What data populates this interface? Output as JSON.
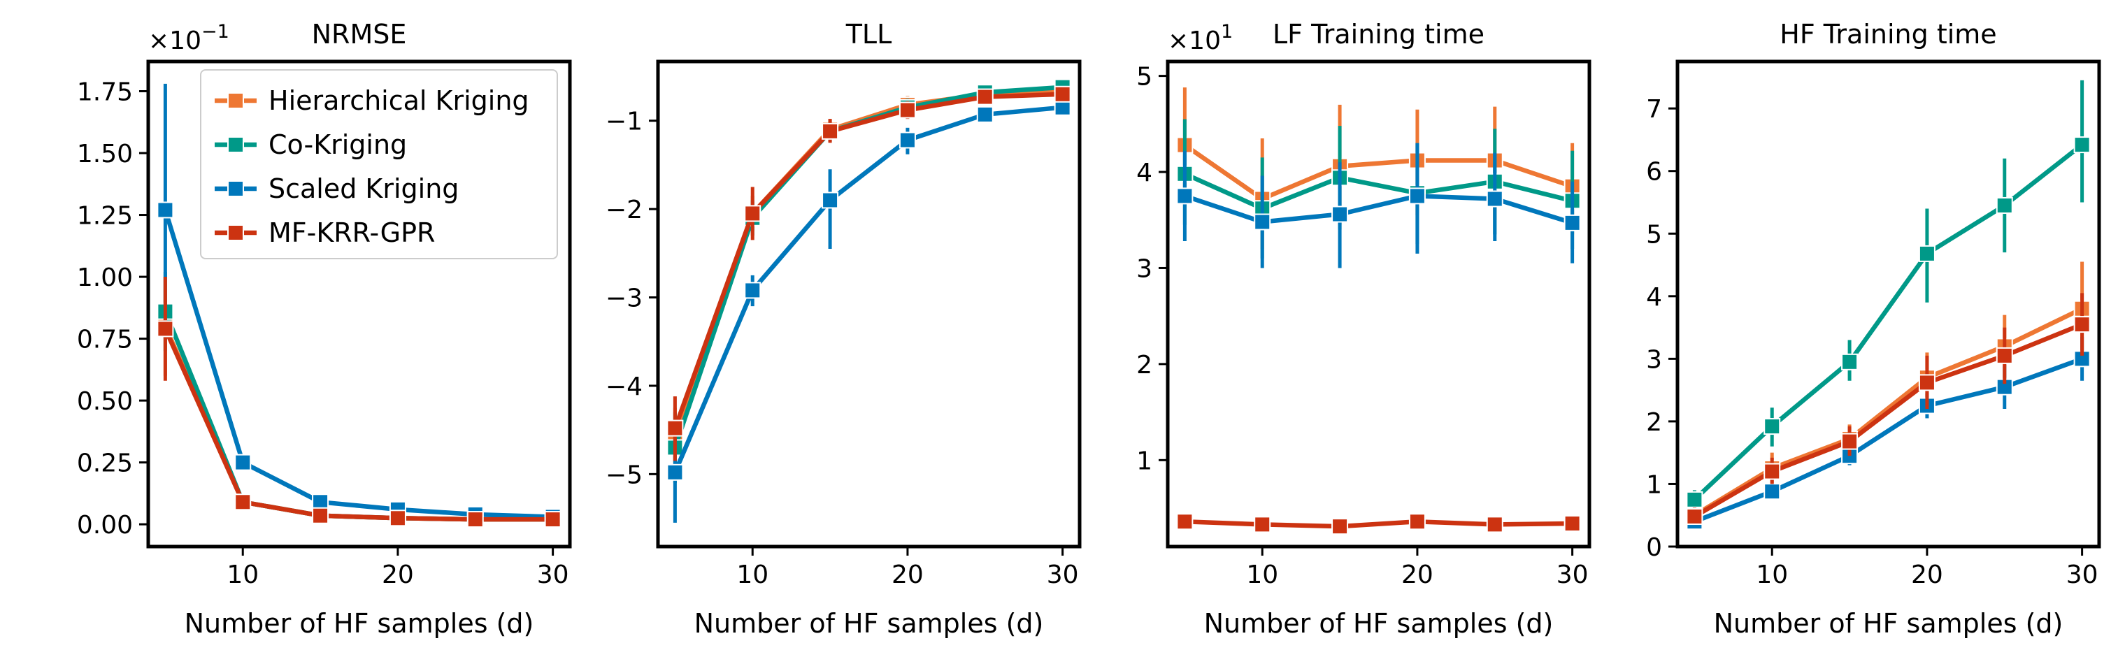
{
  "series_styles": [
    {
      "name": "Hierarchical Kriging",
      "color": "#EE7733"
    },
    {
      "name": "Co-Kriging",
      "color": "#009988"
    },
    {
      "name": "Scaled Kriging",
      "color": "#0077BB"
    },
    {
      "name": "MF-KRR-GPR",
      "color": "#CC3311"
    }
  ],
  "chart_data": [
    {
      "type": "line",
      "title": "NRMSE",
      "multiplier": "×10",
      "multiplier_exp": "−1",
      "xlabel": "Number of HF samples (d)",
      "ylabel": "",
      "x": [
        5,
        10,
        15,
        20,
        25,
        30
      ],
      "xlim": [
        3.9,
        31.1
      ],
      "ylim": [
        -0.09,
        1.87
      ],
      "xticks": [
        10,
        20,
        30
      ],
      "yticks": [
        0.0,
        0.25,
        0.5,
        0.75,
        1.0,
        1.25,
        1.5,
        1.75
      ],
      "ytick_labels": [
        "0.00",
        "0.25",
        "0.50",
        "0.75",
        "1.00",
        "1.25",
        "1.50",
        "1.75"
      ],
      "grid": false,
      "legend": {
        "placement": "top-right",
        "entries": [
          "Hierarchical Kriging",
          "Co-Kriging",
          "Scaled Kriging",
          "MF-KRR-GPR"
        ]
      },
      "series": [
        {
          "name": "Hierarchical Kriging",
          "values": [
            0.8,
            0.09,
            0.035,
            0.025,
            0.02,
            0.02
          ],
          "err_low": [
            0.6,
            0.08,
            0.03,
            0.02,
            0.018,
            0.018
          ],
          "err_high": [
            1.0,
            0.1,
            0.04,
            0.03,
            0.022,
            0.022
          ]
        },
        {
          "name": "Co-Kriging",
          "values": [
            0.86,
            0.09,
            0.035,
            0.025,
            0.02,
            0.02
          ],
          "err_low": [
            0.7,
            0.08,
            0.03,
            0.02,
            0.018,
            0.018
          ],
          "err_high": [
            1.02,
            0.1,
            0.04,
            0.03,
            0.022,
            0.022
          ]
        },
        {
          "name": "Scaled Kriging",
          "values": [
            1.27,
            0.25,
            0.09,
            0.06,
            0.04,
            0.03
          ],
          "err_low": [
            0.75,
            0.22,
            0.08,
            0.04,
            0.035,
            0.027
          ],
          "err_high": [
            1.78,
            0.28,
            0.1,
            0.08,
            0.05,
            0.033
          ]
        },
        {
          "name": "MF-KRR-GPR",
          "values": [
            0.79,
            0.09,
            0.035,
            0.025,
            0.02,
            0.02
          ],
          "err_low": [
            0.58,
            0.08,
            0.03,
            0.02,
            0.018,
            0.018
          ],
          "err_high": [
            1.0,
            0.1,
            0.04,
            0.03,
            0.022,
            0.022
          ]
        }
      ]
    },
    {
      "type": "line",
      "title": "TLL",
      "multiplier": "",
      "multiplier_exp": "",
      "xlabel": "Number of HF samples (d)",
      "ylabel": "",
      "x": [
        5,
        10,
        15,
        20,
        25,
        30
      ],
      "xlim": [
        3.9,
        31.1
      ],
      "ylim": [
        -5.82,
        -0.33
      ],
      "xticks": [
        10,
        20,
        30
      ],
      "yticks": [
        -5,
        -4,
        -3,
        -2,
        -1
      ],
      "ytick_labels": [
        "−5",
        "−4",
        "−3",
        "−2",
        "−1"
      ],
      "grid": false,
      "series": [
        {
          "name": "Hierarchical Kriging",
          "values": [
            -4.62,
            -2.05,
            -1.1,
            -0.82,
            -0.7,
            -0.65
          ],
          "err_low": [
            -5.0,
            -2.25,
            -1.22,
            -0.92,
            -0.76,
            -0.7
          ],
          "err_high": [
            -4.25,
            -1.85,
            -0.98,
            -0.72,
            -0.64,
            -0.6
          ]
        },
        {
          "name": "Co-Kriging",
          "values": [
            -4.7,
            -2.1,
            -1.12,
            -0.85,
            -0.68,
            -0.62
          ],
          "err_low": [
            -5.1,
            -2.3,
            -1.24,
            -0.95,
            -0.75,
            -0.68
          ],
          "err_high": [
            -4.3,
            -1.9,
            -1.0,
            -0.75,
            -0.61,
            -0.56
          ]
        },
        {
          "name": "Scaled Kriging",
          "values": [
            -4.98,
            -2.92,
            -1.9,
            -1.22,
            -0.93,
            -0.85
          ],
          "err_low": [
            -5.55,
            -3.1,
            -2.45,
            -1.38,
            -1.02,
            -0.92
          ],
          "err_high": [
            -4.4,
            -2.75,
            -1.55,
            -1.08,
            -0.84,
            -0.78
          ]
        },
        {
          "name": "MF-KRR-GPR",
          "values": [
            -4.48,
            -2.05,
            -1.12,
            -0.88,
            -0.73,
            -0.7
          ],
          "err_low": [
            -4.85,
            -2.35,
            -1.25,
            -0.98,
            -0.8,
            -0.76
          ],
          "err_high": [
            -4.12,
            -1.75,
            -0.98,
            -0.78,
            -0.66,
            -0.64
          ]
        }
      ]
    },
    {
      "type": "line",
      "title": "LF Training time",
      "multiplier": "×10",
      "multiplier_exp": "1",
      "xlabel": "Number of HF samples (d)",
      "ylabel": "",
      "x": [
        5,
        10,
        15,
        20,
        25,
        30
      ],
      "xlim": [
        3.9,
        31.1
      ],
      "ylim": [
        0.1,
        5.15
      ],
      "xticks": [
        10,
        20,
        30
      ],
      "yticks": [
        1,
        2,
        3,
        4,
        5
      ],
      "ytick_labels": [
        "1",
        "2",
        "3",
        "4",
        "5"
      ],
      "grid": false,
      "series": [
        {
          "name": "Hierarchical Kriging",
          "values": [
            4.28,
            3.72,
            4.06,
            4.12,
            4.12,
            3.85
          ],
          "err_low": [
            3.65,
            3.2,
            3.45,
            3.55,
            3.5,
            3.35
          ],
          "err_high": [
            4.88,
            4.35,
            4.7,
            4.65,
            4.68,
            4.3
          ]
        },
        {
          "name": "Co-Kriging",
          "values": [
            3.98,
            3.62,
            3.94,
            3.78,
            3.9,
            3.7
          ],
          "err_low": [
            3.45,
            3.1,
            3.4,
            3.25,
            3.35,
            3.2
          ],
          "err_high": [
            4.55,
            4.15,
            4.48,
            4.3,
            4.45,
            4.22
          ]
        },
        {
          "name": "Scaled Kriging",
          "values": [
            3.75,
            3.48,
            3.56,
            3.75,
            3.72,
            3.47
          ],
          "err_low": [
            3.28,
            3.0,
            3.0,
            3.15,
            3.28,
            3.05
          ],
          "err_high": [
            4.22,
            3.96,
            4.1,
            4.3,
            4.2,
            3.9
          ]
        },
        {
          "name": "MF-KRR-GPR",
          "values": [
            0.36,
            0.33,
            0.31,
            0.36,
            0.33,
            0.34
          ],
          "err_low": [
            0.33,
            0.3,
            0.28,
            0.33,
            0.3,
            0.31
          ],
          "err_high": [
            0.39,
            0.36,
            0.34,
            0.39,
            0.36,
            0.37
          ]
        }
      ]
    },
    {
      "type": "line",
      "title": "HF Training time",
      "multiplier": "",
      "multiplier_exp": "",
      "xlabel": "Number of HF samples (d)",
      "ylabel": "",
      "x": [
        5,
        10,
        15,
        20,
        25,
        30
      ],
      "xlim": [
        3.9,
        31.1
      ],
      "ylim": [
        0,
        7.75
      ],
      "xticks": [
        10,
        20,
        30
      ],
      "yticks": [
        0,
        1,
        2,
        3,
        4,
        5,
        6,
        7
      ],
      "ytick_labels": [
        "0",
        "1",
        "2",
        "3",
        "4",
        "5",
        "6",
        "7"
      ],
      "grid": false,
      "series": [
        {
          "name": "Hierarchical Kriging",
          "values": [
            0.5,
            1.25,
            1.72,
            2.7,
            3.2,
            3.8
          ],
          "err_low": [
            0.35,
            1.0,
            1.45,
            2.3,
            2.7,
            3.1
          ],
          "err_high": [
            0.65,
            1.5,
            1.95,
            3.1,
            3.7,
            4.55
          ]
        },
        {
          "name": "Co-Kriging",
          "values": [
            0.75,
            1.92,
            2.95,
            4.68,
            5.45,
            6.42
          ],
          "err_low": [
            0.6,
            1.6,
            2.65,
            3.9,
            4.7,
            5.5
          ],
          "err_high": [
            0.9,
            2.22,
            3.3,
            5.4,
            6.2,
            7.45
          ]
        },
        {
          "name": "Scaled Kriging",
          "values": [
            0.4,
            0.88,
            1.45,
            2.25,
            2.55,
            3.0
          ],
          "err_low": [
            0.28,
            0.75,
            1.3,
            2.05,
            2.2,
            2.65
          ],
          "err_high": [
            0.52,
            1.0,
            1.6,
            2.45,
            2.9,
            3.35
          ]
        },
        {
          "name": "MF-KRR-GPR",
          "values": [
            0.48,
            1.2,
            1.68,
            2.62,
            3.05,
            3.55
          ],
          "err_low": [
            0.35,
            1.0,
            1.45,
            2.2,
            2.6,
            3.05
          ],
          "err_high": [
            0.62,
            1.42,
            1.92,
            3.05,
            3.5,
            4.05
          ]
        }
      ]
    }
  ]
}
